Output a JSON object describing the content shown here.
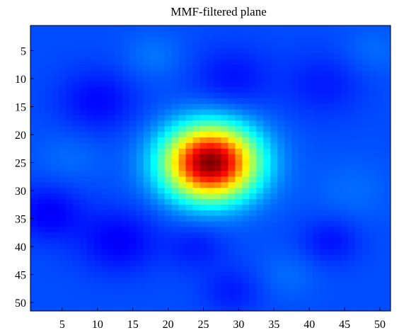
{
  "chart_data": {
    "type": "heatmap",
    "title": "MMF-filtered plane",
    "xlabel": "",
    "ylabel": "",
    "x_ticks": [
      5,
      10,
      15,
      20,
      25,
      30,
      35,
      40,
      45,
      50
    ],
    "y_ticks": [
      5,
      10,
      15,
      20,
      25,
      30,
      35,
      40,
      45,
      50
    ],
    "xlim": [
      0.5,
      51.5
    ],
    "ylim": [
      0.5,
      51.5
    ],
    "y_axis_reversed": true,
    "grid": false,
    "colormap": "jet",
    "grid_size": [
      51,
      51
    ],
    "value_range": [
      0,
      1
    ],
    "peak": {
      "x": 26,
      "y": 25,
      "value": 1.0,
      "sigma": 4.6
    },
    "background_level": 0.2,
    "background_variations": [
      {
        "x": 10,
        "y": 14,
        "delta": -0.07,
        "sigma": 4
      },
      {
        "x": 29,
        "y": 10,
        "delta": -0.06,
        "sigma": 4
      },
      {
        "x": 42,
        "y": 11,
        "delta": -0.05,
        "sigma": 4
      },
      {
        "x": 3,
        "y": 34,
        "delta": -0.08,
        "sigma": 3.5
      },
      {
        "x": 13,
        "y": 39,
        "delta": -0.08,
        "sigma": 4
      },
      {
        "x": 24,
        "y": 40,
        "delta": -0.05,
        "sigma": 3
      },
      {
        "x": 43,
        "y": 39,
        "delta": -0.06,
        "sigma": 3
      },
      {
        "x": 29,
        "y": 48,
        "delta": -0.05,
        "sigma": 3
      },
      {
        "x": 18,
        "y": 6,
        "delta": 0.04,
        "sigma": 3
      },
      {
        "x": 46,
        "y": 30,
        "delta": 0.03,
        "sigma": 4
      },
      {
        "x": 6,
        "y": 24,
        "delta": 0.03,
        "sigma": 3.5
      },
      {
        "x": 37,
        "y": 45,
        "delta": 0.03,
        "sigma": 3
      },
      {
        "x": 49,
        "y": 5,
        "delta": 0.03,
        "sigma": 3
      }
    ]
  }
}
